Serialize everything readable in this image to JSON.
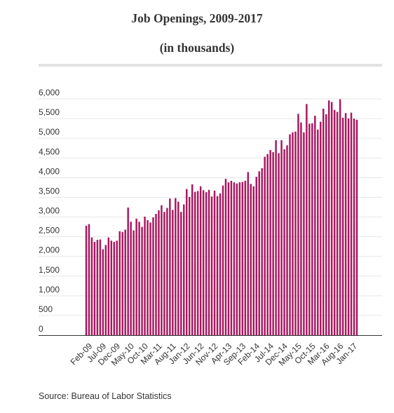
{
  "chart_data": {
    "type": "bar",
    "title": "Job Openings, 2009-2017",
    "subtitle": "(in thousands)",
    "source": "Source: Bureau of Labor Statistics",
    "color": "#a8175f",
    "ylim": [
      0,
      6000
    ],
    "yticks": [
      0,
      500,
      1000,
      1500,
      2000,
      2500,
      3000,
      3500,
      4000,
      4500,
      5000,
      5500,
      6000
    ],
    "ytick_labels": [
      "0",
      "500",
      "1,000",
      "1,500",
      "2,000",
      "2,500",
      "3,000",
      "3,500",
      "4,000",
      "4,500",
      "5,000",
      "5,500",
      "6,000"
    ],
    "grid": true,
    "xtick_labels": [
      {
        "index": 0,
        "label": "Feb-09"
      },
      {
        "index": 5,
        "label": "Jul-09"
      },
      {
        "index": 10,
        "label": "Dec-09"
      },
      {
        "index": 15,
        "label": "May-10"
      },
      {
        "index": 20,
        "label": "Oct-10"
      },
      {
        "index": 25,
        "label": "Mar-11"
      },
      {
        "index": 30,
        "label": "Aug-11"
      },
      {
        "index": 35,
        "label": "Jan-12"
      },
      {
        "index": 40,
        "label": "Jun-12"
      },
      {
        "index": 45,
        "label": "Nov-12"
      },
      {
        "index": 50,
        "label": "Apr-13"
      },
      {
        "index": 55,
        "label": "Sep-13"
      },
      {
        "index": 60,
        "label": "Feb-14"
      },
      {
        "index": 65,
        "label": "Jul-14"
      },
      {
        "index": 70,
        "label": "Dec-14"
      },
      {
        "index": 75,
        "label": "May-15"
      },
      {
        "index": 80,
        "label": "Oct-15"
      },
      {
        "index": 85,
        "label": "Mar-16"
      },
      {
        "index": 90,
        "label": "Aug-16"
      },
      {
        "index": 95,
        "label": "Jan-17"
      }
    ],
    "values": [
      2780,
      2820,
      2480,
      2370,
      2420,
      2430,
      2180,
      2290,
      2480,
      2400,
      2370,
      2400,
      2640,
      2620,
      2680,
      3240,
      2880,
      2660,
      2960,
      2880,
      2750,
      3010,
      2920,
      2860,
      2990,
      3080,
      3170,
      3300,
      3130,
      3230,
      3470,
      3180,
      3480,
      3390,
      3130,
      3320,
      3710,
      3510,
      3830,
      3640,
      3660,
      3780,
      3680,
      3630,
      3690,
      3520,
      3670,
      3530,
      3600,
      3800,
      3970,
      3880,
      3920,
      3880,
      3850,
      3880,
      3890,
      3920,
      4140,
      3840,
      3780,
      4020,
      4160,
      4240,
      4530,
      4600,
      4700,
      4650,
      4950,
      4620,
      4950,
      4720,
      4820,
      5100,
      5150,
      5170,
      5620,
      5400,
      5150,
      5870,
      5370,
      5380,
      5570,
      5220,
      5420,
      5750,
      5610,
      5960,
      5920,
      5720,
      5670,
      5990,
      5520,
      5640,
      5500,
      5650,
      5500,
      5470
    ]
  }
}
